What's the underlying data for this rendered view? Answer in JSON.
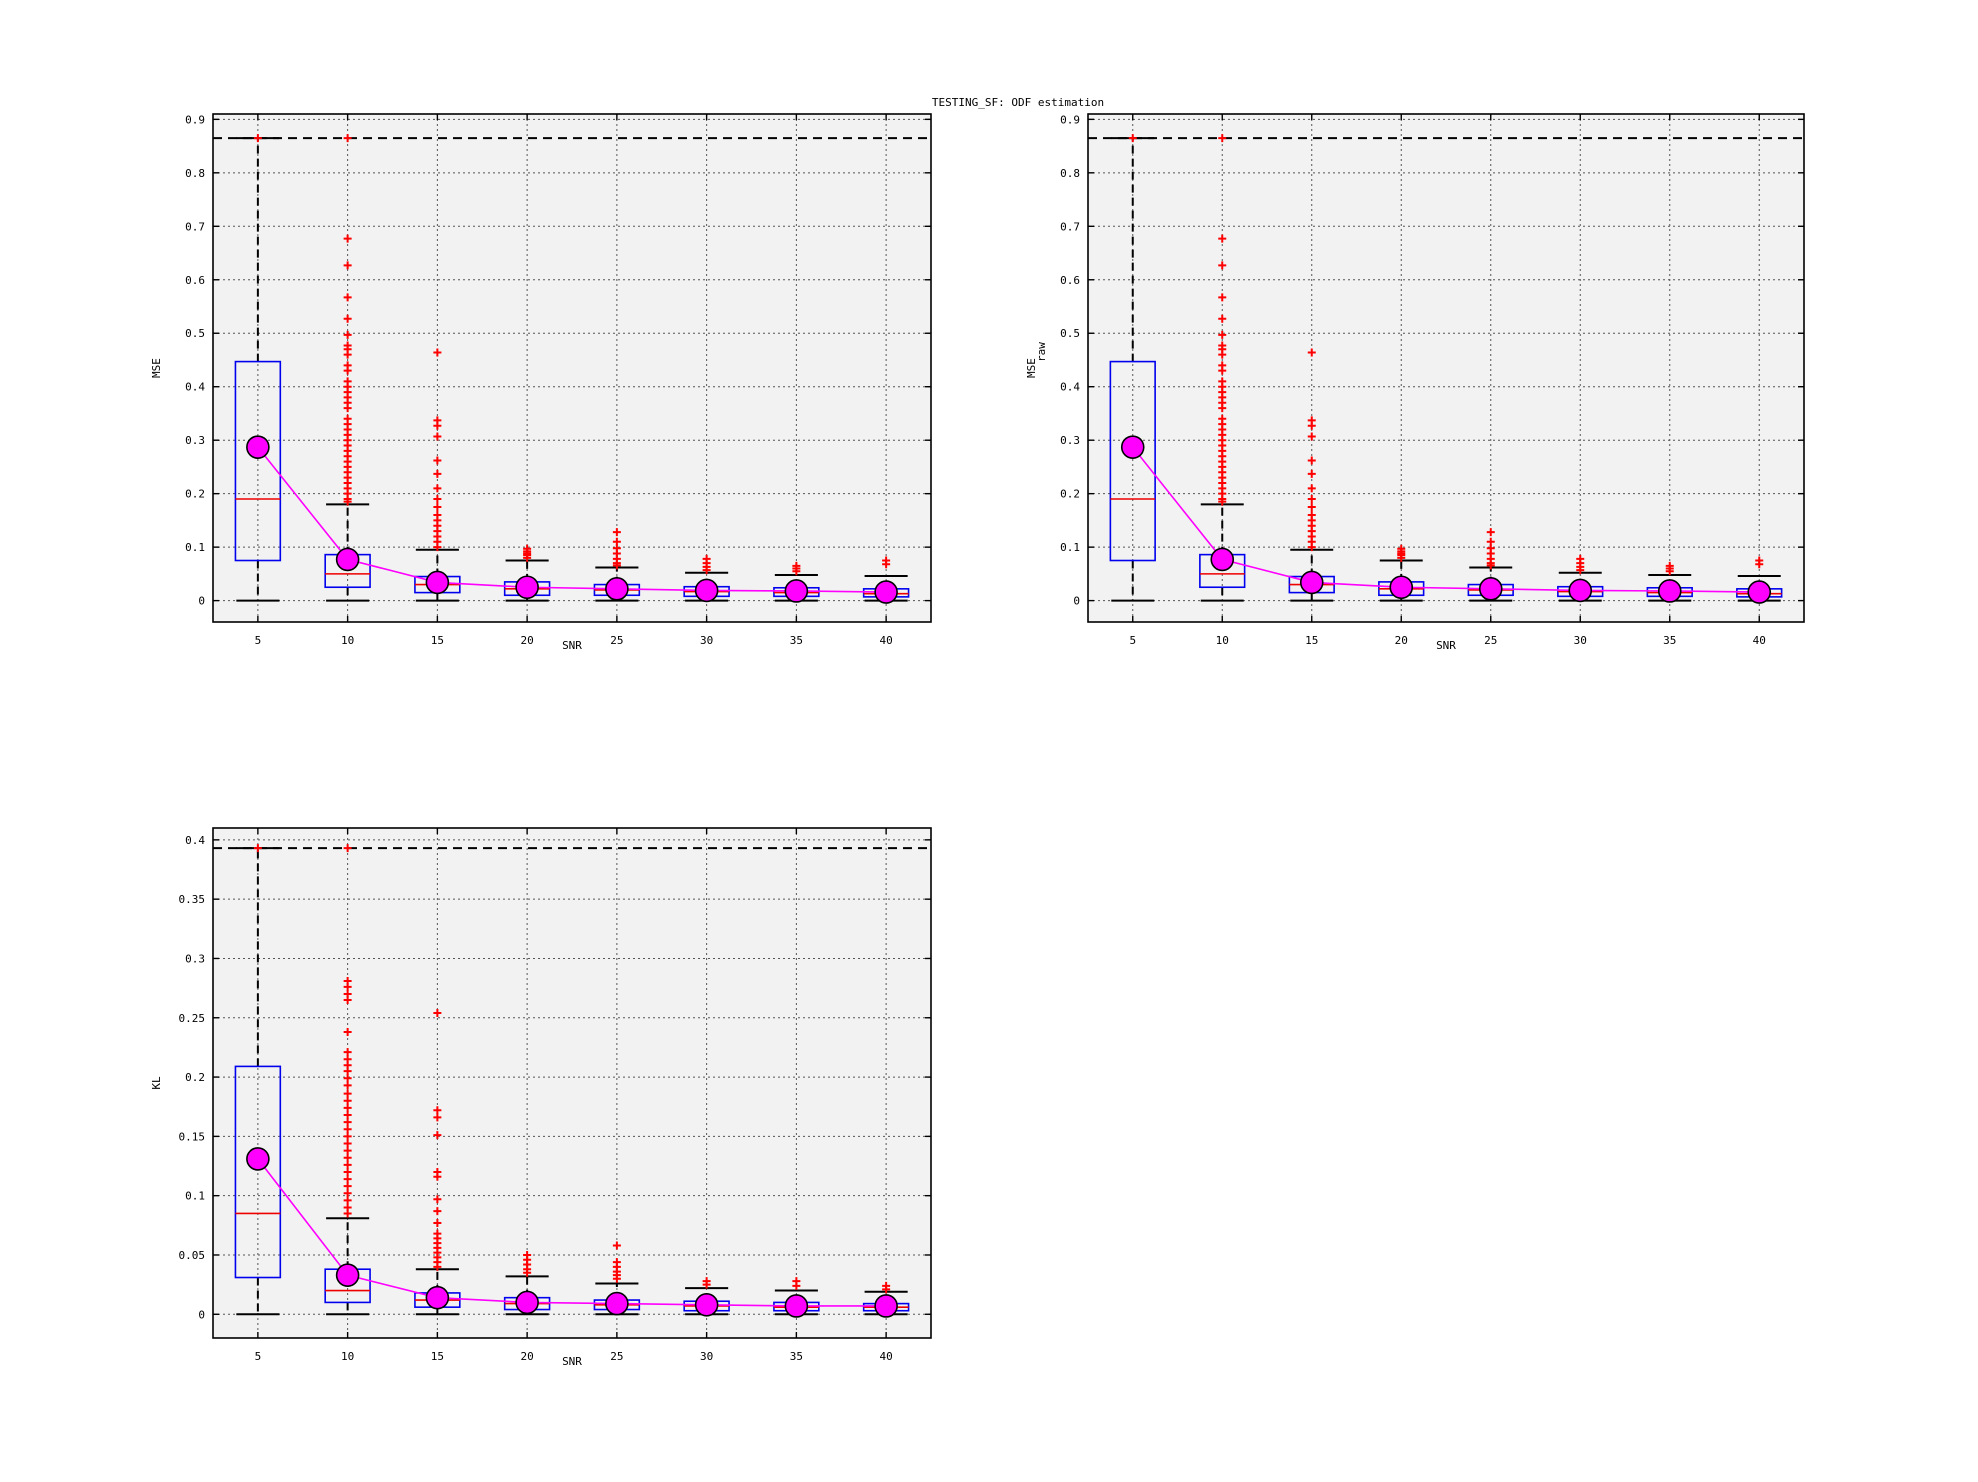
{
  "figure": {
    "title": "TESTING_SF: ODF estimation"
  },
  "chart_data": [
    {
      "type": "box",
      "xlabel": "SNR",
      "ylabel": "MSE",
      "ylabel_sub": "",
      "categories": [
        "5",
        "10",
        "15",
        "20",
        "25",
        "30",
        "35",
        "40"
      ],
      "ylim": [
        -0.04,
        0.91
      ],
      "yticks": [
        0,
        0.1,
        0.2,
        0.3,
        0.4,
        0.5,
        0.6,
        0.7,
        0.8,
        0.9
      ],
      "ytick_labels": [
        "0",
        "0.1",
        "0.2",
        "0.3",
        "0.4",
        "0.5",
        "0.6",
        "0.7",
        "0.8",
        "0.9"
      ],
      "grid": true,
      "max_line": 0.865,
      "boxes": [
        {
          "q1": 0.075,
          "median": 0.19,
          "q3": 0.447,
          "lower_whisker": 0.0,
          "upper_whisker": 0.865
        },
        {
          "q1": 0.025,
          "median": 0.05,
          "q3": 0.086,
          "lower_whisker": 0.0,
          "upper_whisker": 0.18
        },
        {
          "q1": 0.015,
          "median": 0.03,
          "q3": 0.045,
          "lower_whisker": 0.0,
          "upper_whisker": 0.095
        },
        {
          "q1": 0.01,
          "median": 0.022,
          "q3": 0.035,
          "lower_whisker": 0.0,
          "upper_whisker": 0.075
        },
        {
          "q1": 0.01,
          "median": 0.02,
          "q3": 0.03,
          "lower_whisker": 0.0,
          "upper_whisker": 0.062
        },
        {
          "q1": 0.008,
          "median": 0.017,
          "q3": 0.026,
          "lower_whisker": 0.0,
          "upper_whisker": 0.052
        },
        {
          "q1": 0.008,
          "median": 0.015,
          "q3": 0.024,
          "lower_whisker": 0.0,
          "upper_whisker": 0.048
        },
        {
          "q1": 0.007,
          "median": 0.013,
          "q3": 0.022,
          "lower_whisker": 0.0,
          "upper_whisker": 0.046
        }
      ],
      "outliers": [
        [
          0.865
        ],
        [
          0.865,
          0.677,
          0.627,
          0.567,
          0.527,
          0.497,
          0.477,
          0.47,
          0.46,
          0.44,
          0.43,
          0.41,
          0.4,
          0.39,
          0.38,
          0.37,
          0.36,
          0.34,
          0.33,
          0.32,
          0.31,
          0.3,
          0.29,
          0.28,
          0.27,
          0.26,
          0.25,
          0.24,
          0.23,
          0.22,
          0.21,
          0.2,
          0.19,
          0.185
        ],
        [
          0.464,
          0.337,
          0.327,
          0.307,
          0.262,
          0.237,
          0.21,
          0.19,
          0.175,
          0.16,
          0.15,
          0.14,
          0.13,
          0.12,
          0.11,
          0.1
        ],
        [
          0.097,
          0.092,
          0.088,
          0.085,
          0.08
        ],
        [
          0.128,
          0.11,
          0.098,
          0.088,
          0.078,
          0.07,
          0.066
        ],
        [
          0.078,
          0.07,
          0.063,
          0.057
        ],
        [
          0.065,
          0.06,
          0.055
        ],
        [
          0.075,
          0.068
        ]
      ],
      "mean_line": [
        0.287,
        0.077,
        0.034,
        0.025,
        0.022,
        0.019,
        0.018,
        0.016
      ]
    },
    {
      "type": "box",
      "xlabel": "SNR",
      "ylabel": "MSE",
      "ylabel_sub": "raw",
      "categories": [
        "5",
        "10",
        "15",
        "20",
        "25",
        "30",
        "35",
        "40"
      ],
      "ylim": [
        -0.04,
        0.91
      ],
      "yticks": [
        0,
        0.1,
        0.2,
        0.3,
        0.4,
        0.5,
        0.6,
        0.7,
        0.8,
        0.9
      ],
      "ytick_labels": [
        "0",
        "0.1",
        "0.2",
        "0.3",
        "0.4",
        "0.5",
        "0.6",
        "0.7",
        "0.8",
        "0.9"
      ],
      "grid": true,
      "max_line": 0.865,
      "boxes": [
        {
          "q1": 0.075,
          "median": 0.19,
          "q3": 0.447,
          "lower_whisker": 0.0,
          "upper_whisker": 0.865
        },
        {
          "q1": 0.025,
          "median": 0.05,
          "q3": 0.086,
          "lower_whisker": 0.0,
          "upper_whisker": 0.18
        },
        {
          "q1": 0.015,
          "median": 0.03,
          "q3": 0.045,
          "lower_whisker": 0.0,
          "upper_whisker": 0.095
        },
        {
          "q1": 0.01,
          "median": 0.022,
          "q3": 0.035,
          "lower_whisker": 0.0,
          "upper_whisker": 0.075
        },
        {
          "q1": 0.01,
          "median": 0.02,
          "q3": 0.03,
          "lower_whisker": 0.0,
          "upper_whisker": 0.062
        },
        {
          "q1": 0.008,
          "median": 0.017,
          "q3": 0.026,
          "lower_whisker": 0.0,
          "upper_whisker": 0.052
        },
        {
          "q1": 0.008,
          "median": 0.015,
          "q3": 0.024,
          "lower_whisker": 0.0,
          "upper_whisker": 0.048
        },
        {
          "q1": 0.007,
          "median": 0.013,
          "q3": 0.022,
          "lower_whisker": 0.0,
          "upper_whisker": 0.046
        }
      ],
      "outliers": [
        [
          0.865
        ],
        [
          0.865,
          0.677,
          0.627,
          0.567,
          0.527,
          0.497,
          0.477,
          0.47,
          0.46,
          0.44,
          0.43,
          0.41,
          0.4,
          0.39,
          0.38,
          0.37,
          0.36,
          0.34,
          0.33,
          0.32,
          0.31,
          0.3,
          0.29,
          0.28,
          0.27,
          0.26,
          0.25,
          0.24,
          0.23,
          0.22,
          0.21,
          0.2,
          0.19,
          0.185
        ],
        [
          0.464,
          0.337,
          0.327,
          0.307,
          0.262,
          0.237,
          0.21,
          0.19,
          0.175,
          0.16,
          0.15,
          0.14,
          0.13,
          0.12,
          0.11,
          0.1
        ],
        [
          0.097,
          0.092,
          0.088,
          0.085,
          0.08
        ],
        [
          0.128,
          0.11,
          0.098,
          0.088,
          0.078,
          0.07,
          0.066
        ],
        [
          0.078,
          0.07,
          0.063,
          0.057
        ],
        [
          0.065,
          0.06,
          0.055
        ],
        [
          0.075,
          0.068
        ]
      ],
      "mean_line": [
        0.287,
        0.077,
        0.034,
        0.025,
        0.022,
        0.019,
        0.018,
        0.016
      ]
    },
    {
      "type": "box",
      "xlabel": "SNR",
      "ylabel": "KL",
      "ylabel_sub": "",
      "categories": [
        "5",
        "10",
        "15",
        "20",
        "25",
        "30",
        "35",
        "40"
      ],
      "ylim": [
        -0.02,
        0.41
      ],
      "yticks": [
        0,
        0.05,
        0.1,
        0.15,
        0.2,
        0.25,
        0.3,
        0.35,
        0.4
      ],
      "ytick_labels": [
        "0",
        "0.05",
        "0.1",
        "0.15",
        "0.2",
        "0.25",
        "0.3",
        "0.35",
        "0.4"
      ],
      "grid": true,
      "max_line": 0.393,
      "boxes": [
        {
          "q1": 0.031,
          "median": 0.085,
          "q3": 0.209,
          "lower_whisker": 0.0,
          "upper_whisker": 0.393
        },
        {
          "q1": 0.01,
          "median": 0.02,
          "q3": 0.038,
          "lower_whisker": 0.0,
          "upper_whisker": 0.081
        },
        {
          "q1": 0.006,
          "median": 0.012,
          "q3": 0.018,
          "lower_whisker": 0.0,
          "upper_whisker": 0.038
        },
        {
          "q1": 0.004,
          "median": 0.009,
          "q3": 0.014,
          "lower_whisker": 0.0,
          "upper_whisker": 0.032
        },
        {
          "q1": 0.004,
          "median": 0.008,
          "q3": 0.012,
          "lower_whisker": 0.0,
          "upper_whisker": 0.026
        },
        {
          "q1": 0.003,
          "median": 0.007,
          "q3": 0.011,
          "lower_whisker": 0.0,
          "upper_whisker": 0.022
        },
        {
          "q1": 0.003,
          "median": 0.006,
          "q3": 0.01,
          "lower_whisker": 0.0,
          "upper_whisker": 0.02
        },
        {
          "q1": 0.003,
          "median": 0.006,
          "q3": 0.009,
          "lower_whisker": 0.0,
          "upper_whisker": 0.019
        }
      ],
      "outliers": [
        [
          0.393
        ],
        [
          0.393,
          0.281,
          0.276,
          0.27,
          0.265,
          0.238,
          0.221,
          0.215,
          0.21,
          0.205,
          0.199,
          0.193,
          0.186,
          0.18,
          0.174,
          0.168,
          0.162,
          0.156,
          0.15,
          0.144,
          0.138,
          0.132,
          0.126,
          0.12,
          0.114,
          0.108,
          0.102,
          0.096,
          0.09,
          0.085
        ],
        [
          0.254,
          0.172,
          0.166,
          0.151,
          0.12,
          0.116,
          0.097,
          0.087,
          0.077,
          0.068,
          0.064,
          0.06,
          0.056,
          0.052,
          0.048,
          0.044,
          0.04
        ],
        [
          0.05,
          0.046,
          0.042,
          0.038,
          0.035
        ],
        [
          0.058,
          0.044,
          0.04,
          0.036,
          0.033,
          0.03
        ],
        [
          0.028,
          0.025
        ],
        [
          0.028,
          0.024
        ],
        [
          0.024,
          0.021
        ]
      ],
      "mean_line": [
        0.131,
        0.033,
        0.014,
        0.01,
        0.009,
        0.008,
        0.007,
        0.007
      ]
    }
  ]
}
